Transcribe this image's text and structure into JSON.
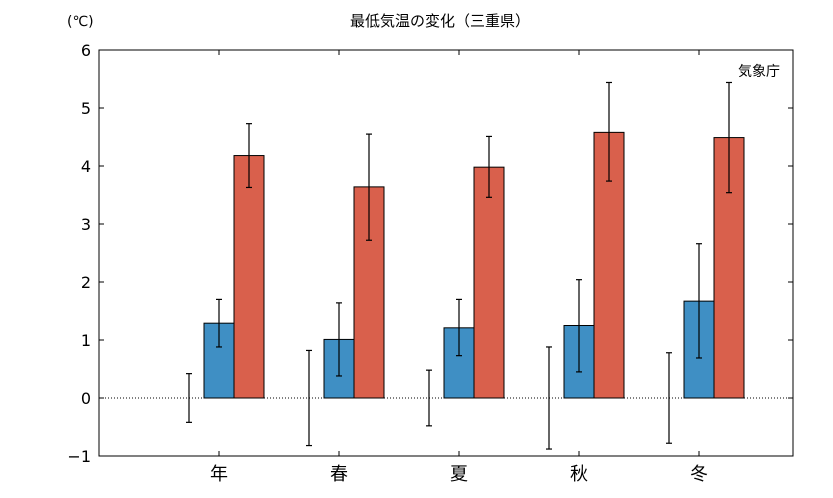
{
  "chart_data": {
    "type": "bar",
    "title": "最低気温の変化（三重県）",
    "unit_label": "(℃)",
    "source_label": "気象庁",
    "categories": [
      "年",
      "春",
      "夏",
      "秋",
      "冬"
    ],
    "ylim": [
      -1,
      6
    ],
    "yticks": [
      -1,
      0,
      1,
      2,
      3,
      4,
      5,
      6
    ],
    "zero_line": "dotted",
    "series": [
      {
        "color": "#5a5a5a",
        "values": [
          0,
          0,
          0,
          0,
          0
        ],
        "err_low": [
          -0.42,
          -0.82,
          -0.48,
          -0.88,
          -0.78
        ],
        "err_high": [
          0.42,
          0.82,
          0.48,
          0.88,
          0.78
        ]
      },
      {
        "color": "#3f8fc4",
        "values": [
          1.29,
          1.01,
          1.21,
          1.25,
          1.67
        ],
        "err_low": [
          0.88,
          0.38,
          0.73,
          0.45,
          0.69
        ],
        "err_high": [
          1.7,
          1.64,
          1.7,
          2.04,
          2.66
        ]
      },
      {
        "color": "#d9604c",
        "values": [
          4.18,
          3.64,
          3.98,
          4.58,
          4.49
        ],
        "err_low": [
          3.63,
          2.72,
          3.46,
          3.74,
          3.54
        ],
        "err_high": [
          4.73,
          4.55,
          4.51,
          5.44,
          5.44
        ]
      }
    ]
  }
}
